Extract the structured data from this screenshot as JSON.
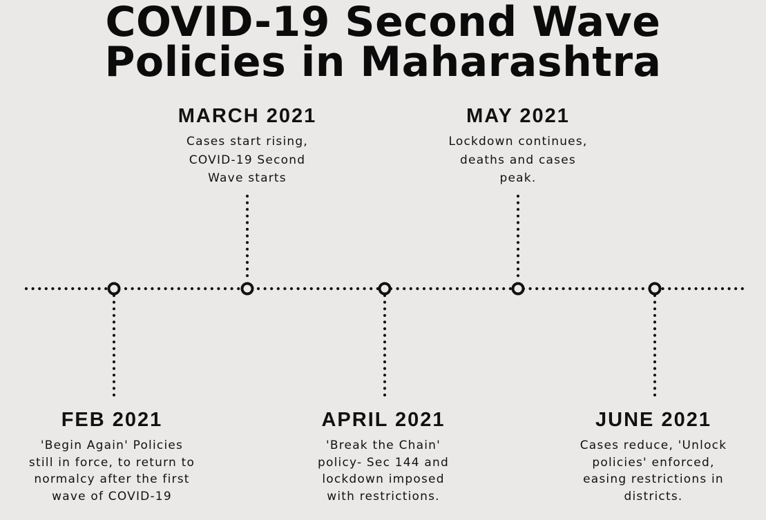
{
  "title": {
    "line1": "COVID-19 Second Wave",
    "line2": "Policies in Maharashtra"
  },
  "colors": {
    "background": "#ebe9e7",
    "ink": "#111111"
  },
  "events": [
    {
      "id": "feb",
      "date": "FEB 2021",
      "description": "'Begin Again' Policies\nstill in force, to return to\nnormalcy after the first\nwave of COVID-19",
      "side": "below"
    },
    {
      "id": "march",
      "date": "MARCH 2021",
      "description": "Cases start rising,\nCOVID-19 Second\nWave starts",
      "side": "above"
    },
    {
      "id": "april",
      "date": "APRIL 2021",
      "description": "'Break the Chain'\npolicy- Sec 144 and\nlockdown imposed\nwith restrictions.",
      "side": "below"
    },
    {
      "id": "may",
      "date": "MAY 2021",
      "description": "Lockdown continues,\ndeaths and cases\npeak.",
      "side": "above"
    },
    {
      "id": "june",
      "date": "JUNE 2021",
      "description": "Cases reduce, 'Unlock\npolicies' enforced,\neasing restrictions in\ndistricts.",
      "side": "below"
    }
  ]
}
